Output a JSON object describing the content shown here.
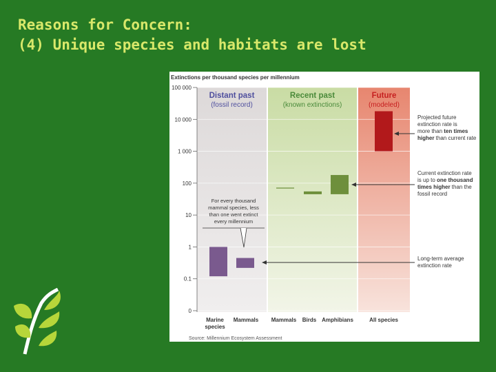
{
  "slide": {
    "title_line1": "Reasons for Concern:",
    "title_line2": "(4) Unique species and habitats are lost"
  },
  "colors": {
    "background": "#267a24",
    "title": "#d9e86a",
    "bar_past": "#7a5a8e",
    "bar_recent": "#6e8f3c",
    "bar_future": "#b2191b",
    "header_past": "#4f4f9e",
    "header_recent": "#4a8a3a",
    "header_future": "#c62020"
  },
  "chart_data": {
    "type": "bar",
    "scale": "log",
    "title": "Extinctions per thousand species per millennium",
    "ylabel": "Extinctions per thousand species per millennium",
    "ylim": [
      0,
      100000
    ],
    "y_ticks": [
      {
        "value": 100000,
        "label": "100 000"
      },
      {
        "value": 10000,
        "label": "10 000"
      },
      {
        "value": 1000,
        "label": "1 000"
      },
      {
        "value": 100,
        "label": "100"
      },
      {
        "value": 10,
        "label": "10"
      },
      {
        "value": 1,
        "label": "1"
      },
      {
        "value": 0.1,
        "label": "0.1"
      },
      {
        "value": 0.01,
        "label": "0"
      }
    ],
    "panels": [
      {
        "key": "past",
        "title": "Distant past",
        "subtitle": "(fossil record)"
      },
      {
        "key": "recent",
        "title": "Recent past",
        "subtitle": "(known extinctions)"
      },
      {
        "key": "future",
        "title": "Future",
        "subtitle": "(modeled)"
      }
    ],
    "series": [
      {
        "name": "Marine species",
        "label_lines": [
          "Marine",
          "species"
        ],
        "panel": "past",
        "low": 0.12,
        "high": 1.0
      },
      {
        "name": "Mammals (fossil)",
        "label_lines": [
          "Mammals"
        ],
        "panel": "past",
        "low": 0.22,
        "high": 0.45
      },
      {
        "name": "Mammals (recent)",
        "label_lines": [
          "Mammals"
        ],
        "panel": "recent",
        "low": 70,
        "high": 70
      },
      {
        "name": "Birds",
        "label_lines": [
          "Birds"
        ],
        "panel": "recent",
        "low": 45,
        "high": 55
      },
      {
        "name": "Amphibians",
        "label_lines": [
          "Amphibians"
        ],
        "panel": "recent",
        "low": 45,
        "high": 180
      },
      {
        "name": "All species",
        "label_lines": [
          "All species"
        ],
        "panel": "future",
        "low": 1000,
        "high": 18000
      }
    ],
    "annotations": {
      "fossil_note": [
        "For every thousand",
        "mammal species, less",
        "than one went extinct",
        "every millennium"
      ],
      "projected": [
        [
          {
            "t": "Projected future",
            "b": false
          }
        ],
        [
          {
            "t": "extinction rate is",
            "b": false
          }
        ],
        [
          {
            "t": "more than ",
            "b": false
          },
          {
            "t": "ten times",
            "b": true
          }
        ],
        [
          {
            "t": "higher",
            "b": true
          },
          {
            "t": " than current rate",
            "b": false
          }
        ]
      ],
      "current": [
        [
          {
            "t": "Current extinction rate",
            "b": false
          }
        ],
        [
          {
            "t": "is up to ",
            "b": false
          },
          {
            "t": "one thousand",
            "b": true
          }
        ],
        [
          {
            "t": "times higher",
            "b": true
          },
          {
            "t": " than the",
            "b": false
          }
        ],
        [
          {
            "t": "fossil record",
            "b": false
          }
        ]
      ],
      "longterm": [
        [
          {
            "t": "Long-term average",
            "b": false
          }
        ],
        [
          {
            "t": "extinction rate",
            "b": false
          }
        ]
      ]
    },
    "source": "Source: Millennium Ecosystem Assessment"
  }
}
